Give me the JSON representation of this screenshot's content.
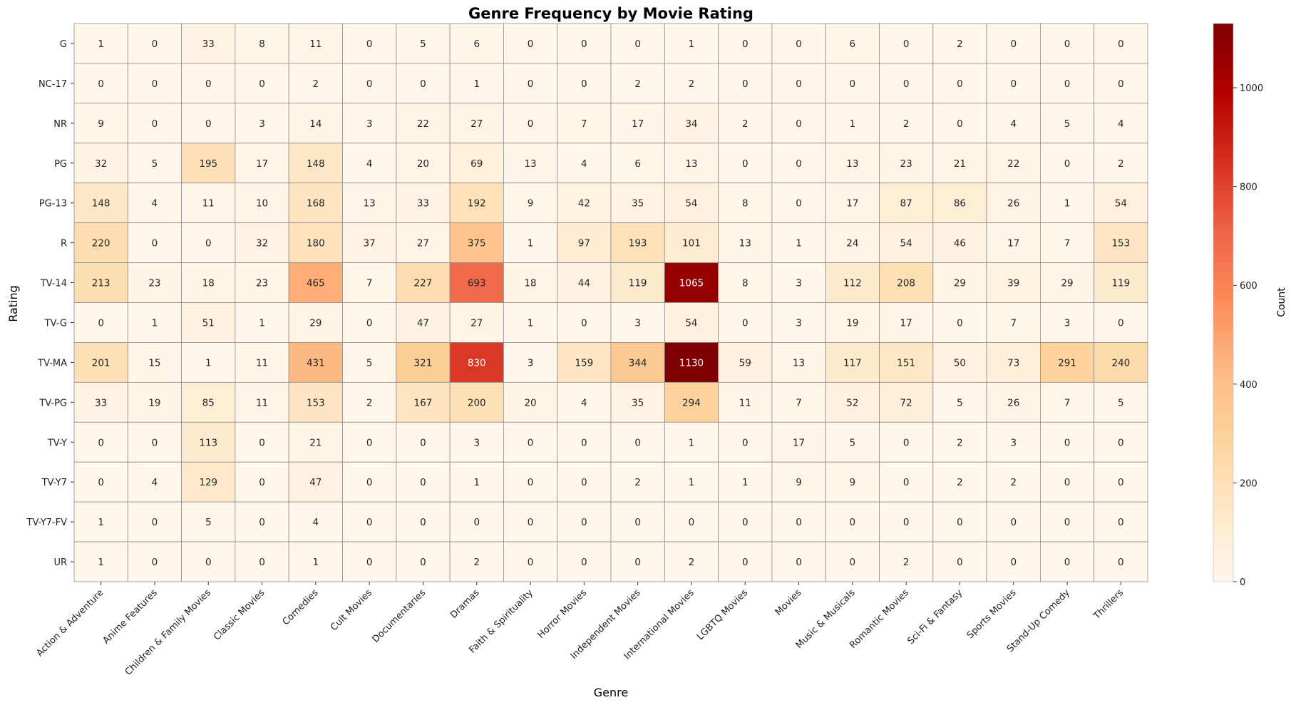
{
  "chart_data": {
    "type": "heatmap",
    "title": "Genre Frequency by Movie Rating",
    "xlabel": "Genre",
    "ylabel": "Rating",
    "colorbar_label": "Count",
    "colorscale": "OrRd",
    "vmin": 0,
    "vmax": 1130,
    "colorbar_ticks": [
      0,
      200,
      400,
      600,
      800,
      1000
    ],
    "grid": true,
    "x_categories": [
      "Action & Adventure",
      "Anime Features",
      "Children & Family Movies",
      "Classic Movies",
      "Comedies",
      "Cult Movies",
      "Documentaries",
      "Dramas",
      "Faith & Spirituality",
      "Horror Movies",
      "Independent Movies",
      "International Movies",
      "LGBTQ Movies",
      "Movies",
      "Music & Musicals",
      "Romantic Movies",
      "Sci-Fi & Fantasy",
      "Sports Movies",
      "Stand-Up Comedy",
      "Thrillers"
    ],
    "y_categories": [
      "G",
      "NC-17",
      "NR",
      "PG",
      "PG-13",
      "R",
      "TV-14",
      "TV-G",
      "TV-MA",
      "TV-PG",
      "TV-Y",
      "TV-Y7",
      "TV-Y7-FV",
      "UR"
    ],
    "values": [
      [
        1,
        0,
        33,
        8,
        11,
        0,
        5,
        6,
        0,
        0,
        0,
        1,
        0,
        0,
        6,
        0,
        2,
        0,
        0,
        0
      ],
      [
        0,
        0,
        0,
        0,
        2,
        0,
        0,
        1,
        0,
        0,
        2,
        2,
        0,
        0,
        0,
        0,
        0,
        0,
        0,
        0
      ],
      [
        9,
        0,
        0,
        3,
        14,
        3,
        22,
        27,
        0,
        7,
        17,
        34,
        2,
        0,
        1,
        2,
        0,
        4,
        5,
        4
      ],
      [
        32,
        5,
        195,
        17,
        148,
        4,
        20,
        69,
        13,
        4,
        6,
        13,
        0,
        0,
        13,
        23,
        21,
        22,
        0,
        2
      ],
      [
        148,
        4,
        11,
        10,
        168,
        13,
        33,
        192,
        9,
        42,
        35,
        54,
        8,
        0,
        17,
        87,
        86,
        26,
        1,
        54
      ],
      [
        220,
        0,
        0,
        32,
        180,
        37,
        27,
        375,
        1,
        97,
        193,
        101,
        13,
        1,
        24,
        54,
        46,
        17,
        7,
        153
      ],
      [
        213,
        23,
        18,
        23,
        465,
        7,
        227,
        693,
        18,
        44,
        119,
        1065,
        8,
        3,
        112,
        208,
        29,
        39,
        29,
        119
      ],
      [
        0,
        1,
        51,
        1,
        29,
        0,
        47,
        27,
        1,
        0,
        3,
        54,
        0,
        3,
        19,
        17,
        0,
        7,
        3,
        0
      ],
      [
        201,
        15,
        1,
        11,
        431,
        5,
        321,
        830,
        3,
        159,
        344,
        1130,
        59,
        13,
        117,
        151,
        50,
        73,
        291,
        240
      ],
      [
        33,
        19,
        85,
        11,
        153,
        2,
        167,
        200,
        20,
        4,
        35,
        294,
        11,
        7,
        52,
        72,
        5,
        26,
        7,
        5
      ],
      [
        0,
        0,
        113,
        0,
        21,
        0,
        0,
        3,
        0,
        0,
        0,
        1,
        0,
        17,
        5,
        0,
        2,
        3,
        0,
        0
      ],
      [
        0,
        4,
        129,
        0,
        47,
        0,
        0,
        1,
        0,
        0,
        2,
        1,
        1,
        9,
        9,
        0,
        2,
        2,
        0,
        0
      ],
      [
        1,
        0,
        5,
        0,
        4,
        0,
        0,
        0,
        0,
        0,
        0,
        0,
        0,
        0,
        0,
        0,
        0,
        0,
        0,
        0
      ],
      [
        1,
        0,
        0,
        0,
        1,
        0,
        0,
        2,
        0,
        0,
        0,
        2,
        0,
        0,
        0,
        2,
        0,
        0,
        0,
        0
      ]
    ]
  }
}
